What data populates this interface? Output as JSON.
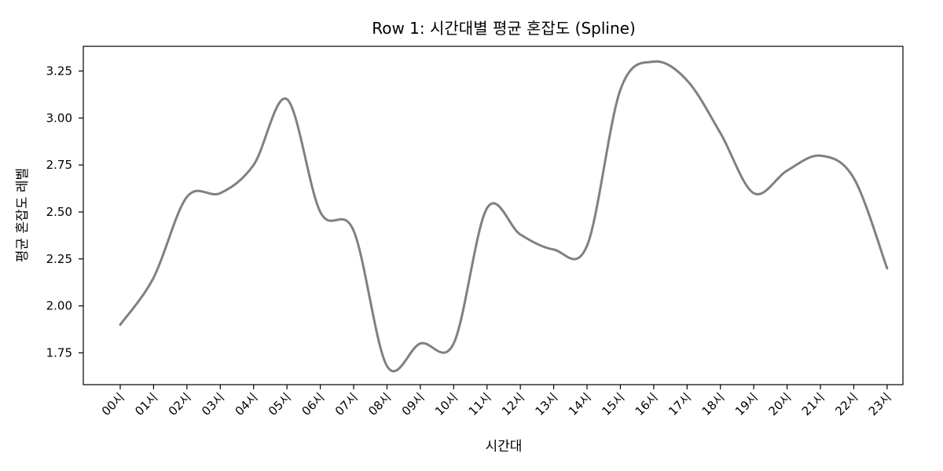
{
  "chart_data": {
    "type": "line",
    "title": "Row 1: 시간대별 평균 혼잡도 (Spline)",
    "xlabel": "시간대",
    "ylabel": "평균 혼잡도 레벨",
    "categories": [
      "00시",
      "01시",
      "02시",
      "03시",
      "04시",
      "05시",
      "06시",
      "07시",
      "08시",
      "09시",
      "10시",
      "11시",
      "12시",
      "13시",
      "14시",
      "15시",
      "16시",
      "17시",
      "18시",
      "19시",
      "20시",
      "21시",
      "22시",
      "23시"
    ],
    "series": [
      {
        "color": "#808080",
        "values": [
          1.9,
          2.15,
          2.58,
          2.6,
          2.75,
          3.1,
          2.5,
          2.4,
          1.68,
          1.8,
          1.8,
          2.52,
          2.38,
          2.3,
          2.32,
          3.15,
          3.3,
          3.2,
          2.92,
          2.6,
          2.72,
          2.8,
          2.68,
          2.2
        ]
      }
    ],
    "yticks": [
      "1.75",
      "2.00",
      "2.25",
      "2.50",
      "2.75",
      "3.00",
      "3.25"
    ],
    "grid": false,
    "legend": "none"
  }
}
